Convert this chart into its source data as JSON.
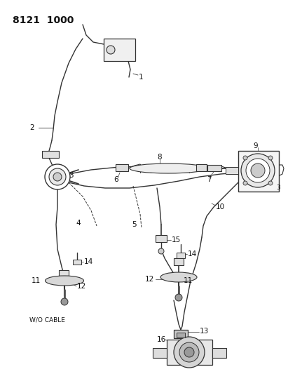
{
  "title": "8121  1000",
  "bg": "#ffffff",
  "lc": "#333333",
  "tc": "#111111",
  "wo_cable": "W/O CABLE",
  "figsize": [
    4.11,
    5.33
  ],
  "dpi": 100
}
